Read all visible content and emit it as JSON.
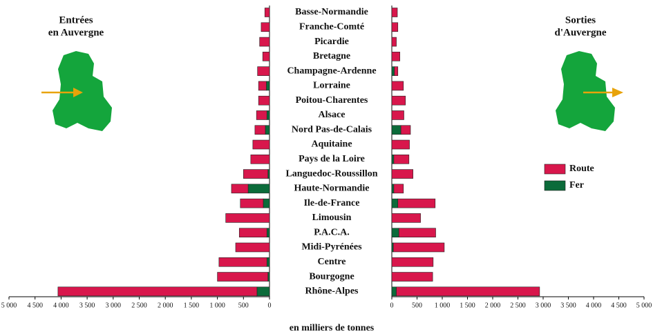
{
  "chart_data": {
    "type": "butterfly-bar",
    "left_title": [
      "Entrées",
      "en Auvergne"
    ],
    "right_title": [
      "Sorties",
      "d'Auvergne"
    ],
    "xlabel": "en milliers de tonnes",
    "categories": [
      "Basse-Normandie",
      "Franche-Comté",
      "Picardie",
      "Bretagne",
      "Champagne-Ardenne",
      "Lorraine",
      "Poitou-Charentes",
      "Alsace",
      "Nord Pas-de-Calais",
      "Aquitaine",
      "Pays de la Loire",
      "Languedoc-Roussillon",
      "Haute-Normandie",
      "Ile-de-France",
      "Limousin",
      "P.A.C.A.",
      "Midi-Pyrénées",
      "Centre",
      "Bourgogne",
      "Rhône-Alpes"
    ],
    "series": [
      {
        "name": "Fer",
        "color": "#0b6b3a",
        "left": [
          0,
          0,
          0,
          0,
          0,
          60,
          0,
          50,
          80,
          0,
          0,
          30,
          410,
          120,
          0,
          50,
          0,
          50,
          30,
          240
        ],
        "right": [
          0,
          0,
          0,
          0,
          50,
          0,
          0,
          0,
          180,
          0,
          40,
          0,
          40,
          120,
          0,
          140,
          30,
          0,
          0,
          90
        ]
      },
      {
        "name": "Route",
        "color": "#d8174c",
        "left": [
          90,
          160,
          190,
          130,
          230,
          150,
          210,
          200,
          200,
          320,
          360,
          470,
          320,
          440,
          840,
          530,
          650,
          920,
          970,
          3820
        ],
        "right": [
          110,
          120,
          90,
          160,
          70,
          230,
          270,
          240,
          190,
          350,
          300,
          420,
          190,
          740,
          570,
          730,
          1010,
          820,
          810,
          2840
        ]
      }
    ],
    "xlim": [
      0,
      5000
    ],
    "xticks": [
      0,
      500,
      {
        "value": 1000,
        "label": "1 000"
      },
      {
        "value": 1500,
        "label": "1 500"
      },
      {
        "value": 2000,
        "label": "2 000"
      },
      {
        "value": 2500,
        "label": "2 500"
      },
      {
        "value": 3000,
        "label": "3 000"
      },
      {
        "value": 3500,
        "label": "3 500"
      },
      {
        "value": 4000,
        "label": "4 000"
      },
      {
        "value": 4500,
        "label": "4 500"
      },
      {
        "value": 5000,
        "label": "5 000"
      }
    ],
    "legend": "right"
  }
}
